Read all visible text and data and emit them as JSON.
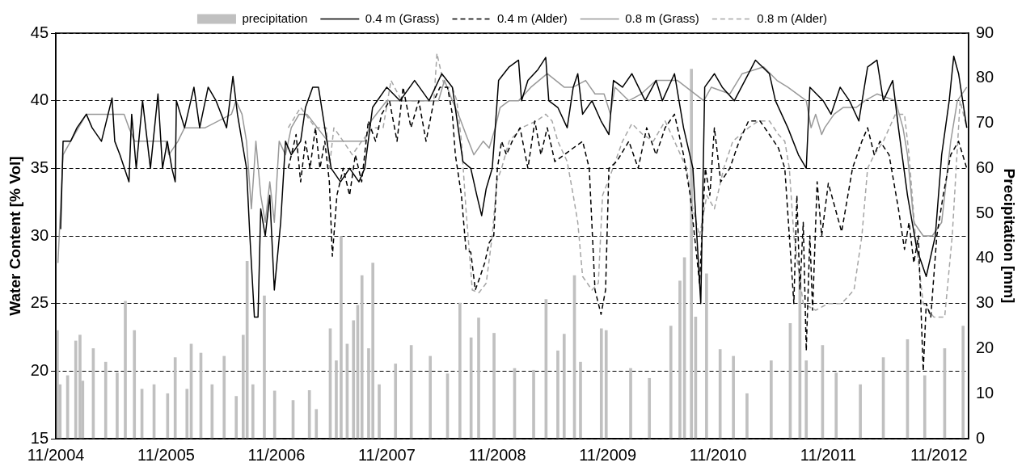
{
  "chart_data": {
    "type": "line",
    "ylabel": "Water Content [% Vol]",
    "y2label": "Precipitation [mm]",
    "xlim": [
      "2004-11-01",
      "2013-02-07"
    ],
    "xticks": [
      {
        "value": "2004-11-01",
        "label": "11/2004"
      },
      {
        "value": "2005-11-01",
        "label": "11/2005"
      },
      {
        "value": "2006-11-01",
        "label": "11/2006"
      },
      {
        "value": "2007-11-01",
        "label": "11/2007"
      },
      {
        "value": "2008-11-01",
        "label": "11/2008"
      },
      {
        "value": "2009-11-01",
        "label": "11/2009"
      },
      {
        "value": "2010-11-01",
        "label": "11/2010"
      },
      {
        "value": "2011-11-01",
        "label": "11/2011"
      },
      {
        "value": "2012-11-01",
        "label": "11/2012"
      }
    ],
    "ylim": [
      15,
      45
    ],
    "yticks": [
      15,
      20,
      25,
      30,
      35,
      40,
      45
    ],
    "y2lim": [
      0,
      90
    ],
    "y2ticks": [
      0,
      10,
      20,
      30,
      40,
      50,
      60,
      70,
      80,
      90
    ],
    "grid": "y",
    "legend": "top",
    "marker": "none",
    "series": [
      {
        "name": "precipitation",
        "type": "bar",
        "axis": "y2",
        "color": "#c0c0c0",
        "x": [
          "2004-11-06",
          "2004-11-15",
          "2004-12-10",
          "2005-01-06",
          "2005-01-20",
          "2005-01-29",
          "2005-03-05",
          "2005-04-15",
          "2005-05-23",
          "2005-06-19",
          "2005-07-19",
          "2005-08-13",
          "2005-09-22",
          "2005-11-06",
          "2005-12-01",
          "2006-01-09",
          "2006-01-23",
          "2006-02-24",
          "2006-04-02",
          "2006-05-12",
          "2006-06-21",
          "2006-07-14",
          "2006-07-27",
          "2006-08-15",
          "2006-09-22",
          "2006-10-26",
          "2006-12-26",
          "2007-02-18",
          "2007-03-13",
          "2007-04-28",
          "2007-05-18",
          "2007-06-03",
          "2007-06-23",
          "2007-07-14",
          "2007-07-28",
          "2007-08-11",
          "2007-09-02",
          "2007-09-16",
          "2007-10-07",
          "2007-11-30",
          "2008-01-21",
          "2008-03-24",
          "2008-05-20",
          "2008-06-30",
          "2008-08-06",
          "2008-08-31",
          "2008-10-21",
          "2008-12-28",
          "2009-03-01",
          "2009-04-11",
          "2009-05-20",
          "2009-06-10",
          "2009-07-14",
          "2009-08-03",
          "2009-10-11",
          "2009-10-27",
          "2010-01-16",
          "2010-03-19",
          "2010-05-29",
          "2010-06-28",
          "2010-07-13",
          "2010-08-05",
          "2010-08-19",
          "2010-09-24",
          "2010-11-08",
          "2010-12-22",
          "2011-02-05",
          "2011-04-26",
          "2011-06-28",
          "2011-07-30",
          "2011-08-20",
          "2011-10-13",
          "2011-11-27",
          "2012-02-15",
          "2012-05-01",
          "2012-07-20",
          "2012-09-15",
          "2012-11-20",
          "2013-01-20"
        ],
        "values": [
          24,
          12,
          14,
          21.7,
          23,
          12.8,
          20,
          17,
          14.6,
          30.5,
          24,
          11,
          12,
          10,
          18,
          11,
          21,
          19,
          12,
          18.3,
          9.4,
          23,
          39.4,
          12,
          31.7,
          10.6,
          8.5,
          10.7,
          6.5,
          24.4,
          17.3,
          44.9,
          21,
          26.2,
          29.6,
          36.2,
          20,
          39,
          12,
          16.6,
          20.7,
          18.3,
          14.4,
          30.1,
          22.4,
          26.8,
          23.4,
          15.6,
          15.2,
          30.9,
          19.5,
          23.2,
          36.2,
          17,
          24.4,
          24,
          15.6,
          13.4,
          25,
          35,
          40.2,
          82,
          27,
          36.6,
          19.8,
          18.3,
          10,
          17.3,
          25.6,
          36.8,
          17.3,
          20.7,
          14.6,
          12,
          18,
          22,
          14,
          20,
          25
        ]
      },
      {
        "name": "0.4 m (Grass)",
        "color": "#000000",
        "line_style": "solid",
        "x": [
          "2004-11-17",
          "2004-11-25",
          "2004-12-20",
          "2005-01-10",
          "2005-02-10",
          "2005-03-01",
          "2005-04-01",
          "2005-05-06",
          "2005-05-15",
          "2005-06-01",
          "2005-07-01",
          "2005-07-10",
          "2005-07-25",
          "2005-08-15",
          "2005-09-10",
          "2005-10-05",
          "2005-10-20",
          "2005-11-05",
          "2005-11-20",
          "2005-12-01",
          "2005-12-05",
          "2006-01-01",
          "2006-02-01",
          "2006-02-20",
          "2006-03-20",
          "2006-04-15",
          "2006-05-20",
          "2006-06-10",
          "2006-06-25",
          "2006-07-10",
          "2006-07-25",
          "2006-08-05",
          "2006-08-20",
          "2006-09-01",
          "2006-09-10",
          "2006-09-25",
          "2006-10-10",
          "2006-10-25",
          "2006-11-15",
          "2006-12-01",
          "2006-12-20",
          "2007-01-20",
          "2007-02-05",
          "2007-03-01",
          "2007-03-20",
          "2007-04-10",
          "2007-05-01",
          "2007-06-01",
          "2007-07-01",
          "2007-08-01",
          "2007-08-20",
          "2007-09-15",
          "2007-11-01",
          "2007-12-15",
          "2008-02-01",
          "2008-03-20",
          "2008-05-01",
          "2008-06-05",
          "2008-07-10",
          "2008-08-05",
          "2008-08-25",
          "2008-09-10",
          "2008-09-25",
          "2008-10-15",
          "2008-10-25",
          "2008-11-05",
          "2008-12-10",
          "2009-01-10",
          "2009-01-20",
          "2009-02-10",
          "2009-03-15",
          "2009-04-10",
          "2009-04-20",
          "2009-05-20",
          "2009-06-20",
          "2009-07-10",
          "2009-07-25",
          "2009-08-10",
          "2009-09-10",
          "2009-10-10",
          "2009-11-05",
          "2009-11-20",
          "2009-12-20",
          "2010-01-20",
          "2010-03-05",
          "2010-04-10",
          "2010-05-01",
          "2010-06-10",
          "2010-07-10",
          "2010-08-10",
          "2010-09-05",
          "2010-09-18",
          "2010-10-20",
          "2010-11-15",
          "2010-12-25",
          "2011-02-10",
          "2011-03-05",
          "2011-04-20",
          "2011-05-10",
          "2011-06-20",
          "2011-07-25",
          "2011-08-20",
          "2011-09-01",
          "2011-10-15",
          "2011-11-10",
          "2011-12-10",
          "2012-01-10",
          "2012-02-10",
          "2012-03-10",
          "2012-04-10",
          "2012-05-01",
          "2012-06-01",
          "2012-06-20",
          "2012-07-20",
          "2012-08-20",
          "2012-09-20",
          "2012-10-20",
          "2012-11-10",
          "2012-12-05",
          "2012-12-20",
          "2013-01-05",
          "2013-02-01"
        ],
        "values": [
          30.5,
          37,
          37,
          38,
          39,
          38,
          37,
          40.2,
          37,
          36,
          34,
          39,
          35,
          40,
          35,
          40.5,
          35,
          37,
          35,
          34,
          40,
          38,
          41,
          38,
          41,
          40,
          38,
          41.8,
          39,
          37,
          35,
          30,
          24,
          24,
          32,
          30,
          33,
          26,
          31,
          37,
          36,
          37,
          39.5,
          41,
          41,
          38,
          35,
          34,
          35,
          34,
          35,
          39.5,
          41,
          40,
          41.5,
          40,
          42,
          41,
          35.5,
          35,
          33,
          31.5,
          33.5,
          35,
          38,
          41.5,
          42.5,
          43,
          40,
          41.5,
          42.3,
          43.2,
          40,
          39.5,
          38,
          41,
          42,
          39,
          40,
          38.5,
          37.5,
          41.5,
          41,
          42,
          40,
          41.5,
          40,
          42,
          38,
          35,
          25,
          41,
          42,
          41,
          40,
          42,
          43,
          42,
          40,
          38,
          36,
          35,
          41,
          40,
          39,
          41,
          40,
          38.5,
          42.5,
          43,
          40,
          41.5,
          38,
          33,
          29,
          27,
          30,
          36,
          40,
          43.3,
          42,
          38
        ]
      },
      {
        "name": "0.4 m (Alder)",
        "color": "#000000",
        "line_style": "dashed",
        "x": [
          "2006-12-10",
          "2007-01-05",
          "2007-01-20",
          "2007-02-05",
          "2007-02-20",
          "2007-03-10",
          "2007-03-25",
          "2007-04-10",
          "2007-04-25",
          "2007-05-05",
          "2007-05-20",
          "2007-06-10",
          "2007-07-01",
          "2007-07-20",
          "2007-08-10",
          "2007-09-01",
          "2007-09-25",
          "2007-10-15",
          "2007-11-10",
          "2007-12-05",
          "2007-12-25",
          "2008-01-20",
          "2008-02-15",
          "2008-03-10",
          "2008-04-05",
          "2008-04-25",
          "2008-05-20",
          "2008-06-05",
          "2008-06-15",
          "2008-06-25",
          "2008-07-05",
          "2008-07-20",
          "2008-08-05",
          "2008-08-20",
          "2008-09-05",
          "2008-09-20",
          "2008-10-05",
          "2008-10-20",
          "2008-11-01",
          "2008-11-15",
          "2008-12-01",
          "2008-12-20",
          "2009-01-15",
          "2009-02-10",
          "2009-03-05",
          "2009-03-25",
          "2009-04-15",
          "2009-05-10",
          "2009-06-10",
          "2009-07-10",
          "2009-08-10",
          "2009-09-01",
          "2009-09-20",
          "2009-10-10",
          "2009-10-25",
          "2009-11-05",
          "2009-12-01",
          "2010-01-10",
          "2010-02-10",
          "2010-03-10",
          "2010-04-10",
          "2010-05-10",
          "2010-06-10",
          "2010-07-10",
          "2010-08-01",
          "2010-09-01",
          "2010-09-20",
          "2010-10-05",
          "2010-10-20",
          "2010-11-10",
          "2010-12-10",
          "2011-01-10",
          "2011-02-10",
          "2011-03-20",
          "2011-04-20",
          "2011-05-20",
          "2011-06-10",
          "2011-06-25",
          "2011-07-10",
          "2011-07-20",
          "2011-07-30",
          "2011-08-10",
          "2011-08-20",
          "2011-09-01",
          "2011-09-10",
          "2011-09-25",
          "2011-10-10",
          "2011-11-01",
          "2011-12-15",
          "2012-01-20",
          "2012-02-20",
          "2012-03-10",
          "2012-04-01",
          "2012-04-20",
          "2012-05-20",
          "2012-06-20",
          "2012-07-10",
          "2012-07-25",
          "2012-08-10",
          "2012-08-25",
          "2012-09-10",
          "2012-09-20",
          "2012-10-05",
          "2012-10-25",
          "2012-11-15",
          "2012-12-10",
          "2013-01-05",
          "2013-02-01"
        ],
        "values": [
          35,
          37.5,
          34,
          37,
          35,
          38,
          35,
          37,
          34,
          28.5,
          33,
          35,
          33,
          36,
          34,
          38.5,
          37,
          39,
          40,
          37,
          41,
          38,
          40,
          37,
          40,
          41,
          41,
          39,
          36,
          34.5,
          33,
          29,
          28.8,
          26,
          27,
          28,
          29.5,
          30,
          35,
          37,
          36,
          37,
          38,
          35,
          38.5,
          36,
          38,
          35.5,
          36,
          36.5,
          37,
          35,
          26,
          24.2,
          26,
          35,
          35.5,
          37,
          35,
          38,
          36,
          38,
          39,
          36,
          33,
          26.5,
          35,
          33,
          38,
          34,
          35,
          37,
          38.5,
          38.5,
          37.5,
          36.5,
          35,
          30,
          25,
          33,
          26,
          31,
          21.5,
          30,
          24.5,
          34,
          30,
          33.9,
          30.3,
          35,
          37,
          38,
          36,
          37,
          36,
          32,
          29,
          31,
          28,
          30,
          20,
          25,
          24,
          30,
          33,
          36,
          37,
          35
        ]
      },
      {
        "name": "0.8 m (Grass)",
        "color": "#999999",
        "line_style": "solid",
        "x": [
          "2004-11-08",
          "2004-11-25",
          "2004-12-20",
          "2005-01-15",
          "2005-02-10",
          "2005-06-15",
          "2005-07-01",
          "2005-07-20",
          "2005-10-31",
          "2005-11-10",
          "2005-12-10",
          "2006-01-01",
          "2006-03-10",
          "2006-06-05",
          "2006-06-20",
          "2006-07-10",
          "2006-07-25",
          "2006-08-10",
          "2006-08-25",
          "2006-09-10",
          "2006-09-25",
          "2006-10-10",
          "2006-10-25",
          "2006-11-10",
          "2006-12-01",
          "2006-12-20",
          "2007-01-15",
          "2007-02-10",
          "2007-04-20",
          "2007-05-10",
          "2007-08-20",
          "2007-09-10",
          "2007-11-01",
          "2008-04-20",
          "2008-05-10",
          "2008-06-05",
          "2008-06-25",
          "2008-07-20",
          "2008-08-15",
          "2008-09-15",
          "2008-10-05",
          "2008-10-25",
          "2008-11-10",
          "2008-12-10",
          "2009-01-10",
          "2009-02-20",
          "2009-04-15",
          "2009-06-10",
          "2009-07-10",
          "2009-08-20",
          "2009-09-20",
          "2009-10-20",
          "2009-11-10",
          "2009-11-25",
          "2010-01-10",
          "2010-02-20",
          "2010-04-10",
          "2010-06-20",
          "2010-09-15",
          "2010-10-10",
          "2010-12-10",
          "2011-01-20",
          "2011-04-01",
          "2011-05-15",
          "2011-06-20",
          "2011-08-20",
          "2011-09-05",
          "2011-09-20",
          "2011-10-10",
          "2011-10-20",
          "2011-11-20",
          "2011-12-20",
          "2012-02-01",
          "2012-03-01",
          "2012-04-10",
          "2012-06-10",
          "2012-07-05",
          "2012-07-20",
          "2012-08-10",
          "2012-09-10",
          "2012-10-10",
          "2012-11-10",
          "2012-12-10",
          "2013-01-01",
          "2013-02-01"
        ],
        "values": [
          28,
          36,
          37,
          38,
          39,
          39,
          38,
          37,
          37,
          36,
          37,
          38,
          38,
          39,
          40,
          39,
          37,
          32,
          37,
          33,
          31,
          34,
          31,
          37,
          36,
          38,
          39,
          39,
          37,
          37,
          37,
          38.5,
          40,
          40,
          41.5,
          40,
          39,
          37.5,
          36,
          37,
          36.5,
          38,
          39.5,
          40,
          40,
          41,
          42,
          41,
          41,
          41.5,
          40.5,
          40.5,
          39,
          41,
          40,
          40.5,
          41.5,
          41.5,
          40,
          41,
          40.5,
          42,
          42.5,
          41.5,
          41,
          40,
          38,
          39,
          37.5,
          38,
          39,
          39.5,
          39.5,
          40,
          40.5,
          40,
          38,
          36,
          31,
          30,
          30,
          31,
          37,
          40,
          41
        ]
      },
      {
        "name": "0.8 m (Alder)",
        "color": "#a6a6a6",
        "line_style": "dashed",
        "x": [
          "2006-12-10",
          "2007-01-20",
          "2007-03-10",
          "2007-04-15",
          "2007-04-25",
          "2007-05-10",
          "2007-06-10",
          "2007-07-10",
          "2007-08-10",
          "2007-09-15",
          "2007-10-20",
          "2007-11-15",
          "2007-12-20",
          "2008-02-20",
          "2008-04-05",
          "2008-04-15",
          "2008-05-10",
          "2008-06-05",
          "2008-06-20",
          "2008-07-05",
          "2008-07-20",
          "2008-08-10",
          "2008-09-01",
          "2008-09-25",
          "2008-10-15",
          "2008-10-30",
          "2008-11-15",
          "2008-12-10",
          "2009-01-20",
          "2009-03-10",
          "2009-04-10",
          "2009-05-01",
          "2009-05-20",
          "2009-06-20",
          "2009-07-10",
          "2009-07-25",
          "2009-08-10",
          "2009-09-10",
          "2009-10-01",
          "2009-10-15",
          "2009-11-10",
          "2009-12-20",
          "2010-01-20",
          "2010-02-25",
          "2010-04-01",
          "2010-05-10",
          "2010-06-10",
          "2010-07-20",
          "2010-08-10",
          "2010-09-01",
          "2010-09-25",
          "2010-10-20",
          "2010-11-20",
          "2010-12-20",
          "2011-02-10",
          "2011-03-15",
          "2011-04-20",
          "2011-05-20",
          "2011-06-10",
          "2011-06-25",
          "2011-07-10",
          "2011-08-10",
          "2011-09-20",
          "2011-11-01",
          "2011-12-15",
          "2012-01-25",
          "2012-02-20",
          "2012-03-10",
          "2012-04-01",
          "2012-05-01",
          "2012-06-10",
          "2012-07-10",
          "2012-07-25",
          "2012-08-15",
          "2012-09-10",
          "2012-10-15",
          "2012-11-20",
          "2012-12-15",
          "2013-01-10",
          "2013-02-01"
        ],
        "values": [
          38,
          39.5,
          38,
          38,
          35,
          38,
          37,
          36,
          37,
          38,
          38,
          41.5,
          40,
          40,
          40,
          43.5,
          41,
          41,
          40,
          37,
          32,
          26,
          25.8,
          26.5,
          30,
          34,
          35,
          37,
          38,
          38.5,
          39,
          38.5,
          37,
          35.5,
          33,
          31,
          27,
          26,
          26.5,
          33,
          34.5,
          37,
          38.3,
          37.5,
          37,
          38.5,
          37,
          35,
          32,
          30,
          33,
          32,
          35,
          37,
          38,
          38.5,
          38.5,
          37.5,
          37,
          35,
          30,
          25,
          24.5,
          25,
          25,
          26,
          30,
          35,
          36,
          37,
          39,
          39,
          36,
          30,
          25,
          24,
          24,
          30,
          40,
          38
        ]
      }
    ]
  }
}
